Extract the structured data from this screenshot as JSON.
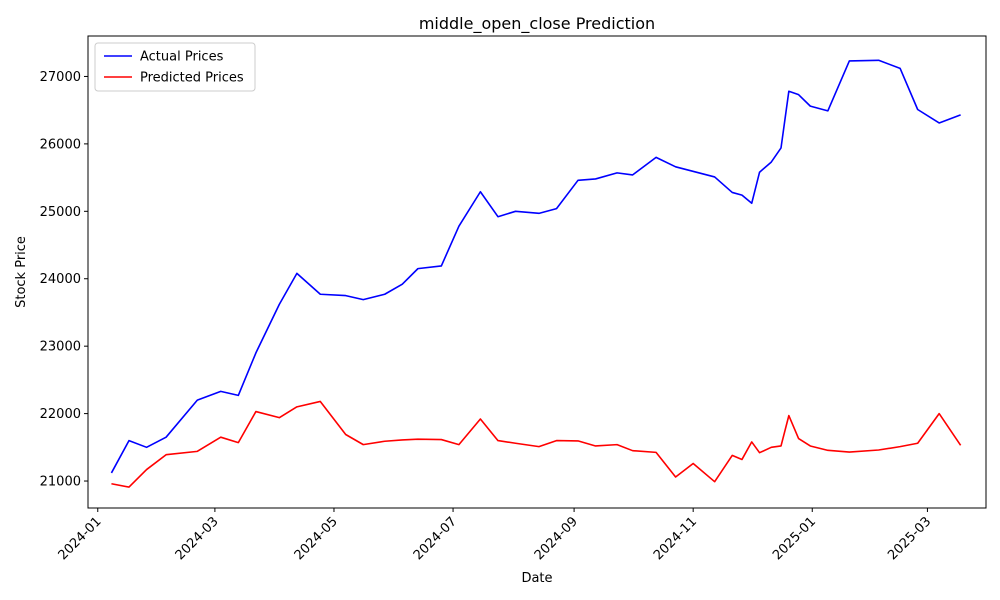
{
  "chart_data": {
    "type": "line",
    "title": "middle_open_close Prediction",
    "xlabel": "Date",
    "ylabel": "Stock Price",
    "x_axis_type": "date",
    "xlim": [
      "2023-12-27",
      "2025-03-31"
    ],
    "ylim": [
      20600,
      27600
    ],
    "x_ticks": [
      "2024-01-01",
      "2024-03-01",
      "2024-05-01",
      "2024-07-01",
      "2024-09-01",
      "2024-11-01",
      "2025-01-01",
      "2025-03-01"
    ],
    "x_tick_labels": [
      "2024-01",
      "2024-03",
      "2024-05",
      "2024-07",
      "2024-09",
      "2024-11",
      "2025-01",
      "2025-03"
    ],
    "y_ticks": [
      21000,
      22000,
      23000,
      24000,
      25000,
      26000,
      27000
    ],
    "y_tick_labels": [
      "21000",
      "22000",
      "23000",
      "24000",
      "25000",
      "26000",
      "27000"
    ],
    "legend": {
      "position": "top-left"
    },
    "grid": false,
    "series": [
      {
        "name": "Actual Prices",
        "color": "#0000ff",
        "points": [
          [
            "2024-01-08",
            21120
          ],
          [
            "2024-01-17",
            21600
          ],
          [
            "2024-01-26",
            21500
          ],
          [
            "2024-02-05",
            21650
          ],
          [
            "2024-02-21",
            22200
          ],
          [
            "2024-03-04",
            22330
          ],
          [
            "2024-03-13",
            22270
          ],
          [
            "2024-03-22",
            22900
          ],
          [
            "2024-04-03",
            23620
          ],
          [
            "2024-04-12",
            24080
          ],
          [
            "2024-04-24",
            23770
          ],
          [
            "2024-05-07",
            23750
          ],
          [
            "2024-05-16",
            23690
          ],
          [
            "2024-05-27",
            23770
          ],
          [
            "2024-06-05",
            23920
          ],
          [
            "2024-06-13",
            24150
          ],
          [
            "2024-06-25",
            24190
          ],
          [
            "2024-07-04",
            24780
          ],
          [
            "2024-07-15",
            25290
          ],
          [
            "2024-07-24",
            24920
          ],
          [
            "2024-08-02",
            25000
          ],
          [
            "2024-08-14",
            24970
          ],
          [
            "2024-08-23",
            25040
          ],
          [
            "2024-09-03",
            25460
          ],
          [
            "2024-09-12",
            25480
          ],
          [
            "2024-09-23",
            25570
          ],
          [
            "2024-10-01",
            25540
          ],
          [
            "2024-10-13",
            25800
          ],
          [
            "2024-10-23",
            25660
          ],
          [
            "2024-11-12",
            25510
          ],
          [
            "2024-11-21",
            25280
          ],
          [
            "2024-11-26",
            25240
          ],
          [
            "2024-12-01",
            25120
          ],
          [
            "2024-12-05",
            25580
          ],
          [
            "2024-12-11",
            25730
          ],
          [
            "2024-12-16",
            25940
          ],
          [
            "2024-12-20",
            26780
          ],
          [
            "2024-12-25",
            26730
          ],
          [
            "2024-12-31",
            26560
          ],
          [
            "2025-01-09",
            26490
          ],
          [
            "2025-01-20",
            27230
          ],
          [
            "2025-02-04",
            27240
          ],
          [
            "2025-02-15",
            27120
          ],
          [
            "2025-02-24",
            26510
          ],
          [
            "2025-03-07",
            26310
          ],
          [
            "2025-03-18",
            26430
          ]
        ]
      },
      {
        "name": "Predicted Prices",
        "color": "#ff0000",
        "points": [
          [
            "2024-01-08",
            20960
          ],
          [
            "2024-01-17",
            20910
          ],
          [
            "2024-01-26",
            21170
          ],
          [
            "2024-02-05",
            21390
          ],
          [
            "2024-02-21",
            21440
          ],
          [
            "2024-03-04",
            21650
          ],
          [
            "2024-03-13",
            21570
          ],
          [
            "2024-03-22",
            22030
          ],
          [
            "2024-04-03",
            21940
          ],
          [
            "2024-04-12",
            22100
          ],
          [
            "2024-04-24",
            22180
          ],
          [
            "2024-05-07",
            21690
          ],
          [
            "2024-05-16",
            21540
          ],
          [
            "2024-05-27",
            21590
          ],
          [
            "2024-06-05",
            21610
          ],
          [
            "2024-06-13",
            21620
          ],
          [
            "2024-06-25",
            21615
          ],
          [
            "2024-07-04",
            21540
          ],
          [
            "2024-07-15",
            21920
          ],
          [
            "2024-07-24",
            21600
          ],
          [
            "2024-08-02",
            21560
          ],
          [
            "2024-08-14",
            21510
          ],
          [
            "2024-08-23",
            21600
          ],
          [
            "2024-09-03",
            21595
          ],
          [
            "2024-09-12",
            21520
          ],
          [
            "2024-09-23",
            21540
          ],
          [
            "2024-10-01",
            21450
          ],
          [
            "2024-10-13",
            21425
          ],
          [
            "2024-10-23",
            21060
          ],
          [
            "2024-11-01",
            21260
          ],
          [
            "2024-11-12",
            20990
          ],
          [
            "2024-11-21",
            21380
          ],
          [
            "2024-11-26",
            21320
          ],
          [
            "2024-12-01",
            21580
          ],
          [
            "2024-12-05",
            21420
          ],
          [
            "2024-12-11",
            21500
          ],
          [
            "2024-12-16",
            21520
          ],
          [
            "2024-12-20",
            21970
          ],
          [
            "2024-12-25",
            21630
          ],
          [
            "2024-12-31",
            21520
          ],
          [
            "2025-01-09",
            21455
          ],
          [
            "2025-01-20",
            21430
          ],
          [
            "2025-02-04",
            21460
          ],
          [
            "2025-02-15",
            21510
          ],
          [
            "2025-02-24",
            21560
          ],
          [
            "2025-03-07",
            22000
          ],
          [
            "2025-03-18",
            21530
          ]
        ]
      }
    ]
  }
}
